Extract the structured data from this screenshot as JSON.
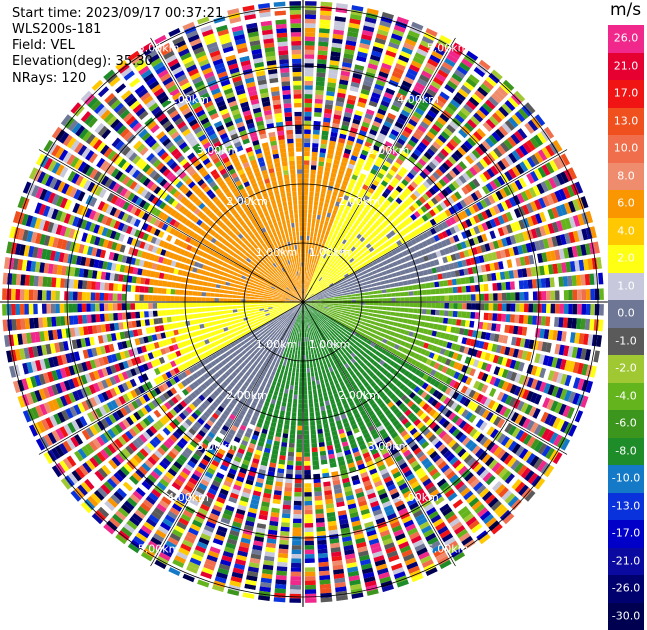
{
  "header": {
    "start_time": "Start time: 2023/09/17 00:37:21",
    "instrument": "WLS200s-181",
    "field": "Field: VEL",
    "elevation": "Elevation(deg): 35.30",
    "nrays": "NRays: 120"
  },
  "colorbar": {
    "unit": "m/s",
    "ticks": [
      "26.0",
      "21.0",
      "17.0",
      "13.0",
      "10.0",
      "8.0",
      "6.0",
      "4.0",
      "2.0",
      "1.0",
      "0.0",
      "-1.0",
      "-2.0",
      "-4.0",
      "-6.0",
      "-8.0",
      "-10.0",
      "-13.0",
      "-17.0",
      "-21.0",
      "-26.0",
      "-30.0"
    ],
    "colors": [
      "#f0288c",
      "#e60032",
      "#f01414",
      "#f0501e",
      "#f06e4b",
      "#f08c6e",
      "#fa9600",
      "#ffc800",
      "#ffff14",
      "#c8c8dc",
      "#6e7896",
      "#5a5a5a",
      "#a0c832",
      "#64b41e",
      "#3c961e",
      "#1e8c28",
      "#147ac8",
      "#0a32dc",
      "#0000c8",
      "#0a0aa0",
      "#00006e",
      "#000050"
    ]
  },
  "chart_data": {
    "type": "ppi",
    "field": "VEL",
    "elevation_deg": 35.3,
    "nrays": 120,
    "range_rings_km": [
      1.0,
      2.0,
      3.0,
      4.0,
      5.0
    ],
    "ring_labels": [
      "1.00km",
      "2.00km",
      "3.00km",
      "4.00km",
      "5.00km"
    ],
    "max_range_km": 5.1,
    "clean_range_km": 2.1,
    "dominant_flow": {
      "approaching_sector_deg": [
        180,
        360
      ],
      "receding_sector_deg": [
        0,
        180
      ],
      "note_sectors": [
        {
          "azimuth_from": 270,
          "azimuth_to": 20,
          "value_ms": 6.0
        },
        {
          "azimuth_from": 20,
          "azimuth_to": 60,
          "value_ms": 2.0
        },
        {
          "azimuth_from": 60,
          "azimuth_to": 80,
          "value_ms": 0.0
        },
        {
          "azimuth_from": 80,
          "azimuth_to": 120,
          "value_ms": -2.0
        },
        {
          "azimuth_from": 120,
          "azimuth_to": 200,
          "value_ms": -6.0
        },
        {
          "azimuth_from": 200,
          "azimuth_to": 240,
          "value_ms": 0.0
        },
        {
          "azimuth_from": 240,
          "azimuth_to": 270,
          "value_ms": 2.0
        }
      ]
    },
    "colorbar_range": [
      -30.0,
      26.0
    ]
  }
}
